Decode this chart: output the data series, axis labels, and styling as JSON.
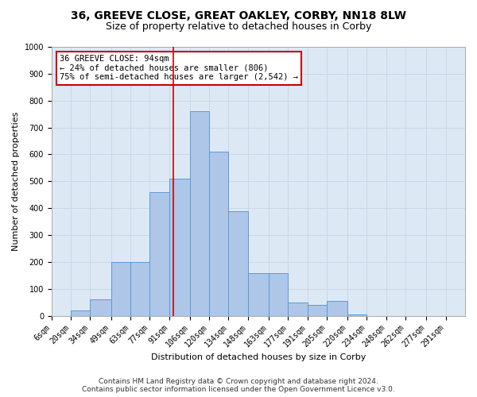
{
  "title1": "36, GREEVE CLOSE, GREAT OAKLEY, CORBY, NN18 8LW",
  "title2": "Size of property relative to detached houses in Corby",
  "xlabel": "Distribution of detached houses by size in Corby",
  "ylabel": "Number of detached properties",
  "footer1": "Contains HM Land Registry data © Crown copyright and database right 2024.",
  "footer2": "Contains public sector information licensed under the Open Government Licence v3.0.",
  "annotation_line1": "36 GREEVE CLOSE: 94sqm",
  "annotation_line2": "← 24% of detached houses are smaller (806)",
  "annotation_line3": "75% of semi-detached houses are larger (2,542) →",
  "bar_labels": [
    "6sqm",
    "20sqm",
    "34sqm",
    "49sqm",
    "63sqm",
    "77sqm",
    "91sqm",
    "106sqm",
    "120sqm",
    "134sqm",
    "148sqm",
    "163sqm",
    "177sqm",
    "191sqm",
    "205sqm",
    "220sqm",
    "234sqm",
    "248sqm",
    "262sqm",
    "277sqm",
    "291sqm"
  ],
  "bar_values": [
    0,
    20,
    60,
    200,
    200,
    460,
    510,
    760,
    610,
    390,
    160,
    160,
    50,
    40,
    55,
    5,
    0,
    0,
    0,
    0,
    0
  ],
  "bar_edges": [
    6,
    20,
    34,
    49,
    63,
    77,
    91,
    106,
    120,
    134,
    148,
    163,
    177,
    191,
    205,
    220,
    234,
    248,
    262,
    277,
    291,
    305
  ],
  "bar_color": "#aec6e8",
  "bar_edgecolor": "#5b9bd5",
  "vline_color": "#cc0000",
  "vline_x": 94,
  "ylim": [
    0,
    1000
  ],
  "yticks": [
    0,
    100,
    200,
    300,
    400,
    500,
    600,
    700,
    800,
    900,
    1000
  ],
  "grid_color": "#c8d8e8",
  "bg_color": "#dce9f5",
  "annotation_box_color": "#ffffff",
  "annotation_box_edgecolor": "#cc0000",
  "title1_fontsize": 10,
  "title2_fontsize": 9,
  "axis_label_fontsize": 8,
  "tick_fontsize": 7,
  "annotation_fontsize": 7.5,
  "footer_fontsize": 6.5
}
